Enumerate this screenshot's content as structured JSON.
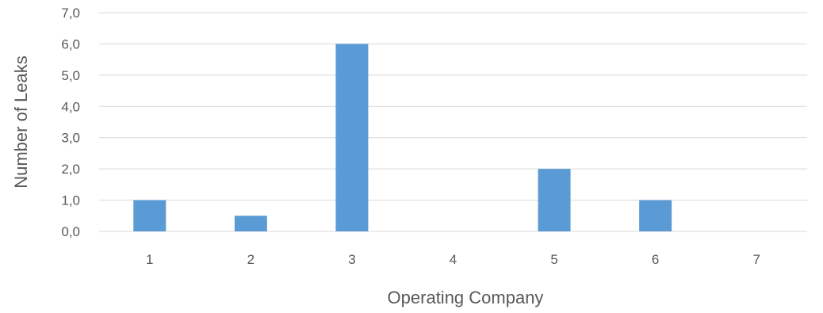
{
  "chart_data": {
    "type": "bar",
    "title": "",
    "xlabel": "Operating Company",
    "ylabel": "Number of Leaks",
    "categories": [
      "1",
      "2",
      "3",
      "4",
      "5",
      "6",
      "7"
    ],
    "values": [
      1.0,
      0.5,
      6.0,
      0.0,
      2.0,
      1.0,
      0.0
    ],
    "ylim": [
      0,
      7
    ],
    "yticks": [
      "0,0",
      "1,0",
      "2,0",
      "3,0",
      "4,0",
      "5,0",
      "6,0",
      "7,0"
    ],
    "grid": true,
    "legend": "none",
    "colors": {
      "bar": "#5B9BD5",
      "grid": "#D9D9D9",
      "text": "#595959"
    }
  }
}
